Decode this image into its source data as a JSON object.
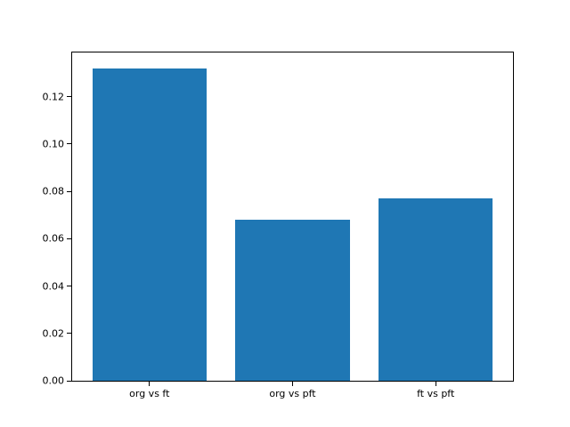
{
  "chart_data": {
    "type": "bar",
    "categories": [
      "org vs ft",
      "org vs pft",
      "ft vs pft"
    ],
    "values": [
      0.132,
      0.068,
      0.077
    ],
    "title": "",
    "xlabel": "",
    "ylabel": "",
    "ylim": [
      0,
      0.1386
    ],
    "xlim": [
      -0.54,
      2.54
    ],
    "yticks": [
      0,
      0.02,
      0.04,
      0.06,
      0.08,
      0.1,
      0.12
    ],
    "ytick_format_decimals": 2,
    "bar_width": 0.8,
    "bar_color": "#1f77b4",
    "axis_color": "#000000",
    "background_color": "#ffffff",
    "grid": false,
    "legend": false
  }
}
